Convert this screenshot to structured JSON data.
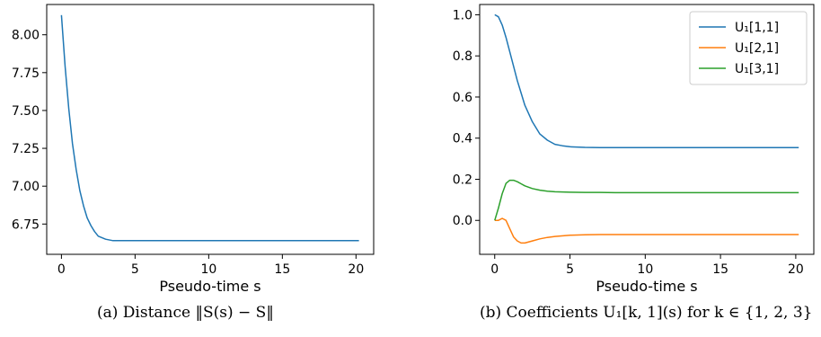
{
  "chart_data": [
    {
      "type": "line",
      "title": "",
      "xlabel": "Pseudo-time s",
      "ylabel": "",
      "xlim": [
        -1.0,
        21.2
      ],
      "ylim": [
        6.55,
        8.2
      ],
      "xticks": [
        0,
        5,
        10,
        15,
        20
      ],
      "yticks": [
        6.75,
        7.0,
        7.25,
        7.5,
        7.75,
        8.0
      ],
      "ytick_labels": [
        "6.75",
        "7.00",
        "7.25",
        "7.50",
        "7.75",
        "8.00"
      ],
      "grid": false,
      "series": [
        {
          "color": "#1f77b4",
          "x": [
            0,
            0.25,
            0.5,
            0.75,
            1.0,
            1.25,
            1.5,
            1.75,
            2.0,
            2.25,
            2.5,
            3.0,
            3.5,
            4.0,
            5.0,
            6.0,
            8.0,
            10.0,
            12.0,
            15.0,
            18.0,
            20.2
          ],
          "y": [
            8.13,
            7.79,
            7.51,
            7.28,
            7.11,
            6.97,
            6.87,
            6.79,
            6.74,
            6.7,
            6.67,
            6.65,
            6.64,
            6.64,
            6.64,
            6.64,
            6.64,
            6.64,
            6.64,
            6.64,
            6.64,
            6.64
          ]
        }
      ],
      "caption": "(a)  Distance ‖S(s) − S‖"
    },
    {
      "type": "line",
      "title": "",
      "xlabel": "Pseudo-time s",
      "ylabel": "",
      "xlim": [
        -1.0,
        21.2
      ],
      "ylim": [
        -0.165,
        1.05
      ],
      "xticks": [
        0,
        5,
        10,
        15,
        20
      ],
      "yticks": [
        0.0,
        0.2,
        0.4,
        0.6,
        0.8,
        1.0
      ],
      "ytick_labels": [
        "0.0",
        "0.2",
        "0.4",
        "0.6",
        "0.8",
        "1.0"
      ],
      "grid": false,
      "legend_position": "top-right",
      "series": [
        {
          "name": "U₁[1,1]",
          "color": "#1f77b4",
          "x": [
            0,
            0.25,
            0.5,
            0.75,
            1.0,
            1.25,
            1.5,
            1.75,
            2.0,
            2.5,
            3.0,
            3.5,
            4.0,
            4.5,
            5.0,
            6.0,
            7.0,
            8.0,
            10.0,
            12.0,
            15.0,
            18.0,
            20.2
          ],
          "y": [
            1.0,
            0.99,
            0.95,
            0.89,
            0.82,
            0.75,
            0.68,
            0.62,
            0.56,
            0.48,
            0.42,
            0.39,
            0.37,
            0.363,
            0.358,
            0.355,
            0.354,
            0.354,
            0.354,
            0.354,
            0.354,
            0.354,
            0.354
          ]
        },
        {
          "name": "U₁[2,1]",
          "color": "#ff7f0e",
          "x": [
            0,
            0.25,
            0.5,
            0.75,
            1.0,
            1.25,
            1.5,
            1.75,
            2.0,
            2.5,
            3.0,
            3.5,
            4.0,
            5.0,
            6.0,
            7.0,
            8.0,
            10.0,
            12.0,
            15.0,
            18.0,
            20.2
          ],
          "y": [
            0.0,
            0.0,
            0.01,
            0.0,
            -0.04,
            -0.08,
            -0.1,
            -0.11,
            -0.11,
            -0.1,
            -0.09,
            -0.083,
            -0.078,
            -0.072,
            -0.07,
            -0.069,
            -0.069,
            -0.069,
            -0.069,
            -0.069,
            -0.069,
            -0.069
          ]
        },
        {
          "name": "U₁[3,1]",
          "color": "#2ca02c",
          "x": [
            0,
            0.25,
            0.5,
            0.75,
            1.0,
            1.25,
            1.5,
            1.75,
            2.0,
            2.5,
            3.0,
            3.5,
            4.0,
            5.0,
            6.0,
            7.0,
            8.0,
            10.0,
            12.0,
            15.0,
            18.0,
            20.2
          ],
          "y": [
            0.0,
            0.06,
            0.13,
            0.18,
            0.195,
            0.195,
            0.188,
            0.178,
            0.168,
            0.155,
            0.147,
            0.142,
            0.139,
            0.137,
            0.136,
            0.136,
            0.135,
            0.135,
            0.135,
            0.135,
            0.135,
            0.135
          ]
        }
      ],
      "caption": "(b)  Coefficients U₁[k, 1](s)  for  k ∈ {1, 2, 3}"
    }
  ]
}
